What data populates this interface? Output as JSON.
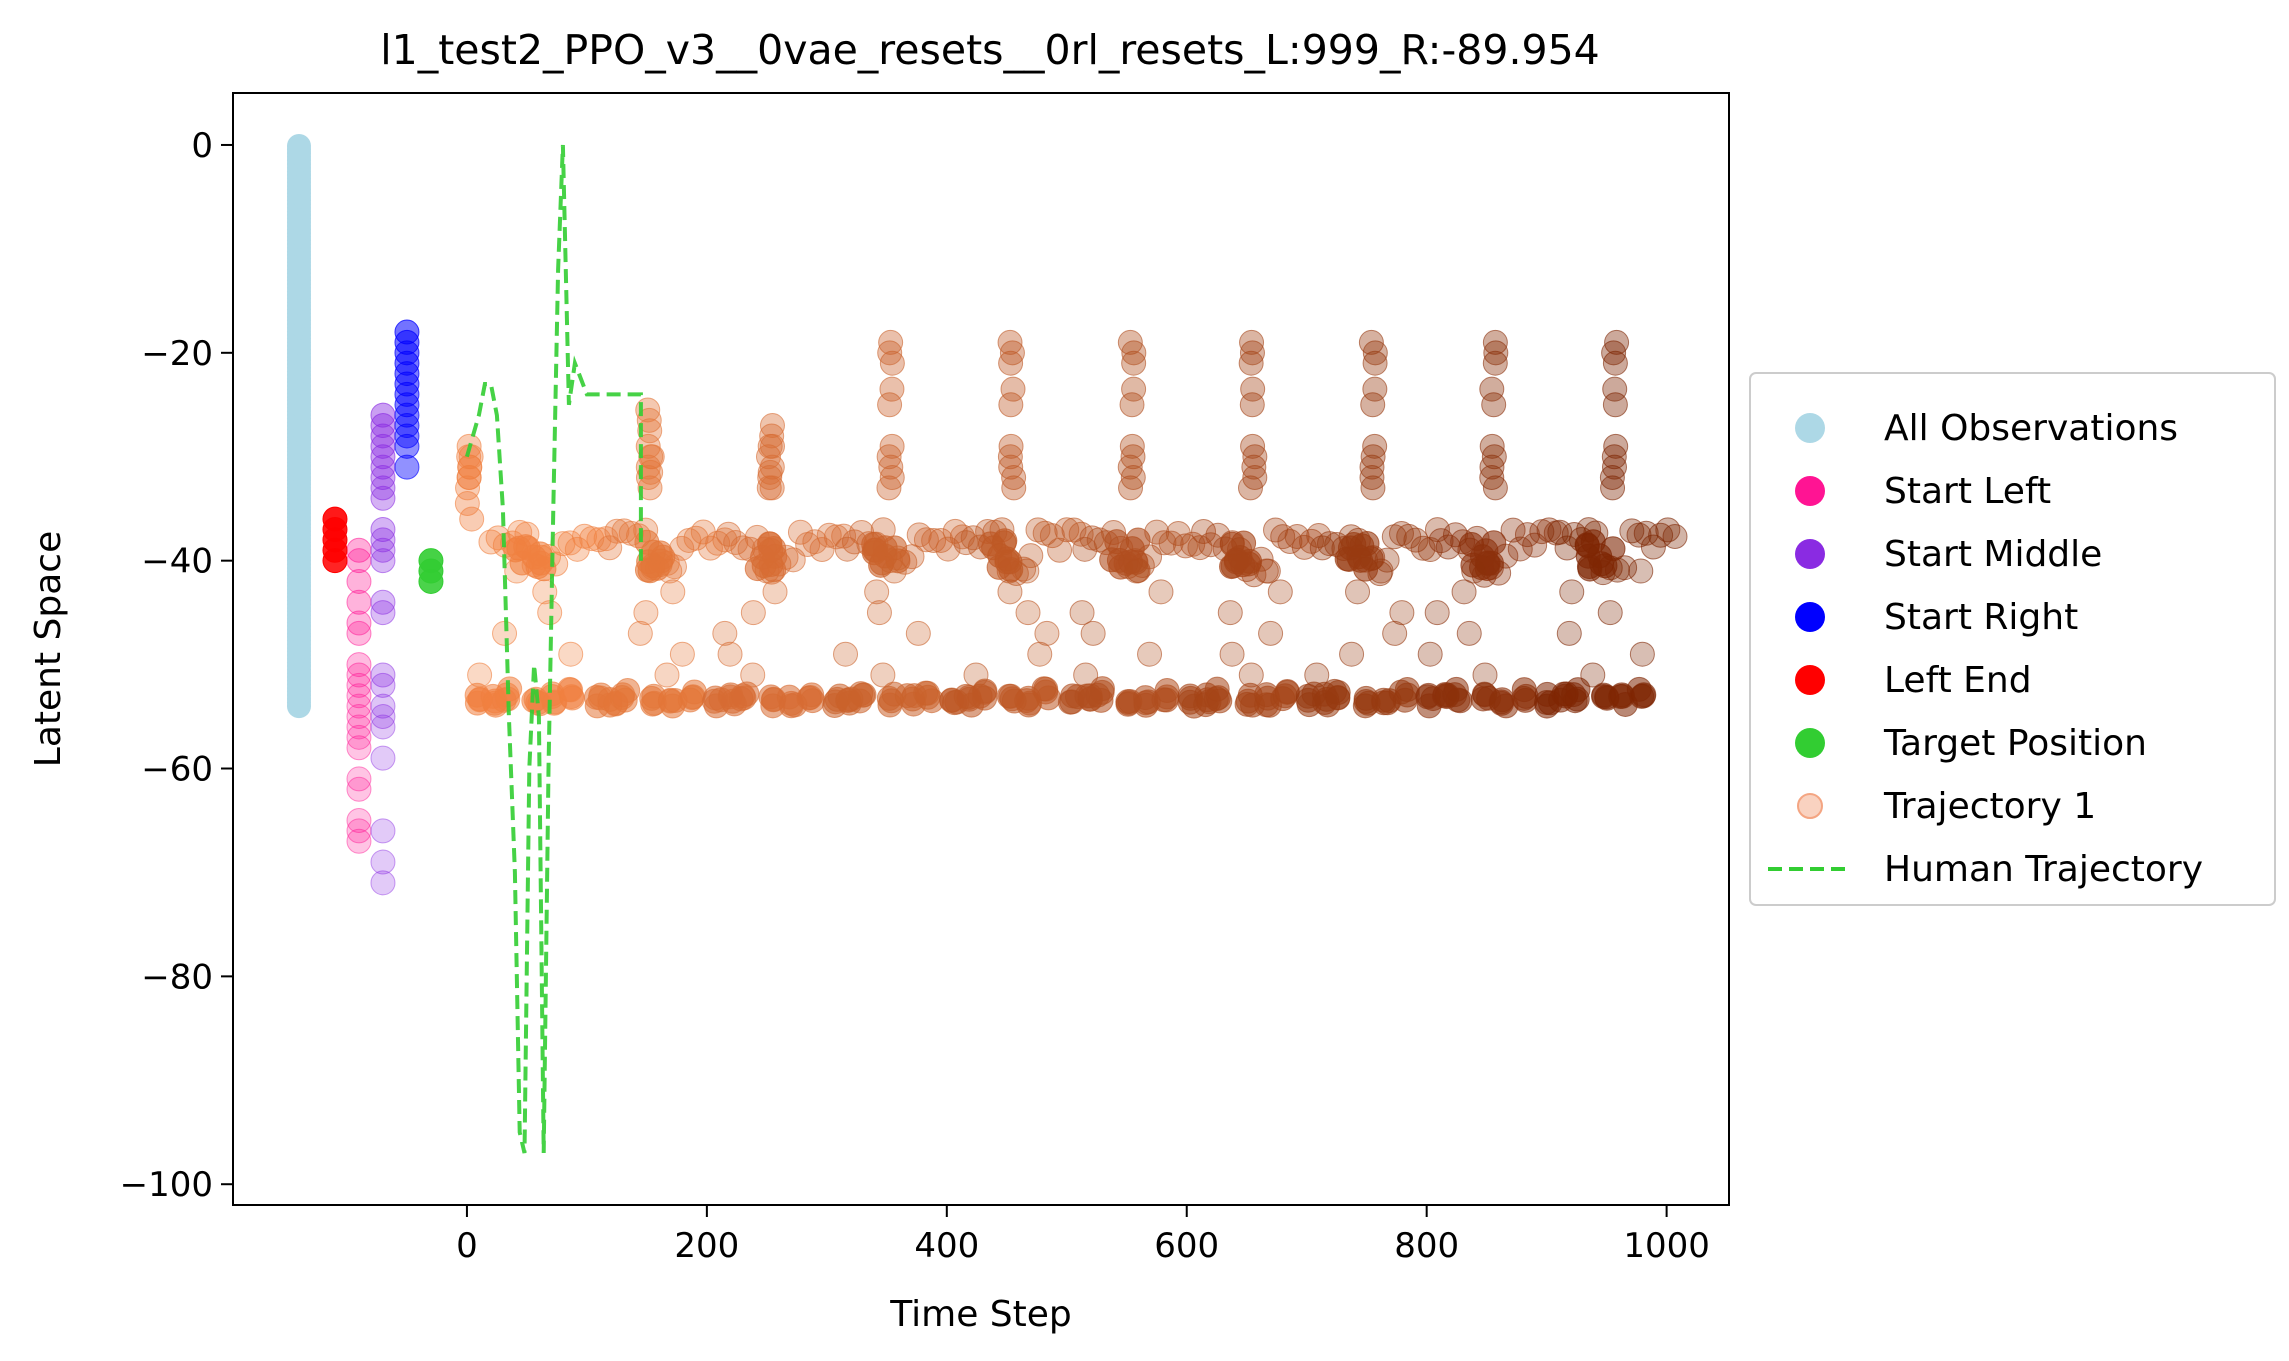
{
  "chart_data": {
    "type": "scatter",
    "title": "l1_test2_PPO_v3__0vae_resets__0rl_resets_L:999_R:-89.954",
    "xlabel": "Time Step",
    "ylabel": "Latent Space",
    "xlim": [
      -195,
      1052
    ],
    "ylim": [
      -102,
      5
    ],
    "x_ticks": [
      0,
      200,
      400,
      600,
      800,
      1000
    ],
    "x_tick_labels": [
      "0",
      "200",
      "400",
      "600",
      "800",
      "1000"
    ],
    "y_ticks": [
      0,
      -20,
      -40,
      -60,
      -80,
      -100
    ],
    "y_tick_labels": [
      "0",
      "−20",
      "−40",
      "−60",
      "−80",
      "−100"
    ],
    "grid": false,
    "legend_position": "right-outside",
    "colors": {
      "all_observations": "#add8e6",
      "start_left": "#ff1493",
      "start_middle": "#8a2be2",
      "start_right": "#0000ff",
      "left_end": "#ff0000",
      "target_position": "#32cd32",
      "trajectory_early": "#f08040",
      "trajectory_late": "#7f2704",
      "human_trajectory": "#32cd32"
    },
    "legend": [
      {
        "label": "All Observations",
        "color": "#add8e6",
        "marker": "circle"
      },
      {
        "label": "Start Left",
        "color": "#ff1493",
        "marker": "circle"
      },
      {
        "label": "Start Middle",
        "color": "#8a2be2",
        "marker": "circle"
      },
      {
        "label": "Start Right",
        "color": "#0000ff",
        "marker": "circle"
      },
      {
        "label": "Left End",
        "color": "#ff0000",
        "marker": "circle"
      },
      {
        "label": "Target Position",
        "color": "#32cd32",
        "marker": "circle"
      },
      {
        "label": "Trajectory 1",
        "color": "#f4a582",
        "marker": "circle-faded"
      },
      {
        "label": "Human Trajectory",
        "color": "#32cd32",
        "marker": "dashed-line"
      }
    ],
    "series": [
      {
        "name": "All Observations",
        "x": -140,
        "y_range": [
          -54,
          0
        ]
      },
      {
        "name": "Start Left",
        "x": -90,
        "y": [
          -39,
          -40,
          -42,
          -44,
          -46,
          -47,
          -50,
          -51,
          -52,
          -53,
          -54,
          -55,
          -56,
          -57,
          -58,
          -61,
          -62,
          -65,
          -66,
          -67
        ]
      },
      {
        "name": "Start Middle",
        "x": -70,
        "y": [
          -26,
          -27,
          -28,
          -29,
          -30,
          -31,
          -32,
          -33,
          -34,
          -37,
          -38,
          -39,
          -40,
          -44,
          -45,
          -51,
          -52,
          -54,
          -55,
          -56,
          -59,
          -66,
          -69,
          -71
        ]
      },
      {
        "name": "Start Right",
        "x": -50,
        "y": [
          -18,
          -19,
          -20,
          -21,
          -22,
          -23,
          -24,
          -25,
          -26,
          -27,
          -28,
          -29,
          -31
        ]
      },
      {
        "name": "Left End",
        "x": -110,
        "y": [
          -36,
          -37,
          -38,
          -39,
          -40
        ]
      },
      {
        "name": "Target Position",
        "x": -30,
        "y": [
          -40,
          -41,
          -42
        ]
      },
      {
        "name": "Trajectory 1",
        "x_range": [
          0,
          999
        ],
        "period": 99,
        "y_levels": [
          -54,
          -52,
          -49,
          -46,
          -44,
          -42,
          -40,
          -38,
          -36,
          -33,
          -30,
          -28,
          -25,
          -23,
          -21,
          -19
        ],
        "description_levels": "bands near -54, -38 and peaks near -18 to -24 each cycle"
      },
      {
        "name": "Human Trajectory",
        "x": [
          0,
          10,
          15,
          20,
          25,
          30,
          35,
          40,
          44,
          48,
          52,
          56,
          60,
          64,
          68,
          72,
          76,
          80,
          85,
          90,
          100,
          110,
          145,
          145
        ],
        "y": [
          -30,
          -26,
          -23,
          -23,
          -26,
          -35,
          -55,
          -70,
          -95,
          -97,
          -60,
          -50,
          -55,
          -97,
          -60,
          -35,
          -12,
          0,
          -25,
          -21,
          -24,
          -24,
          -24,
          -40
        ]
      }
    ]
  }
}
